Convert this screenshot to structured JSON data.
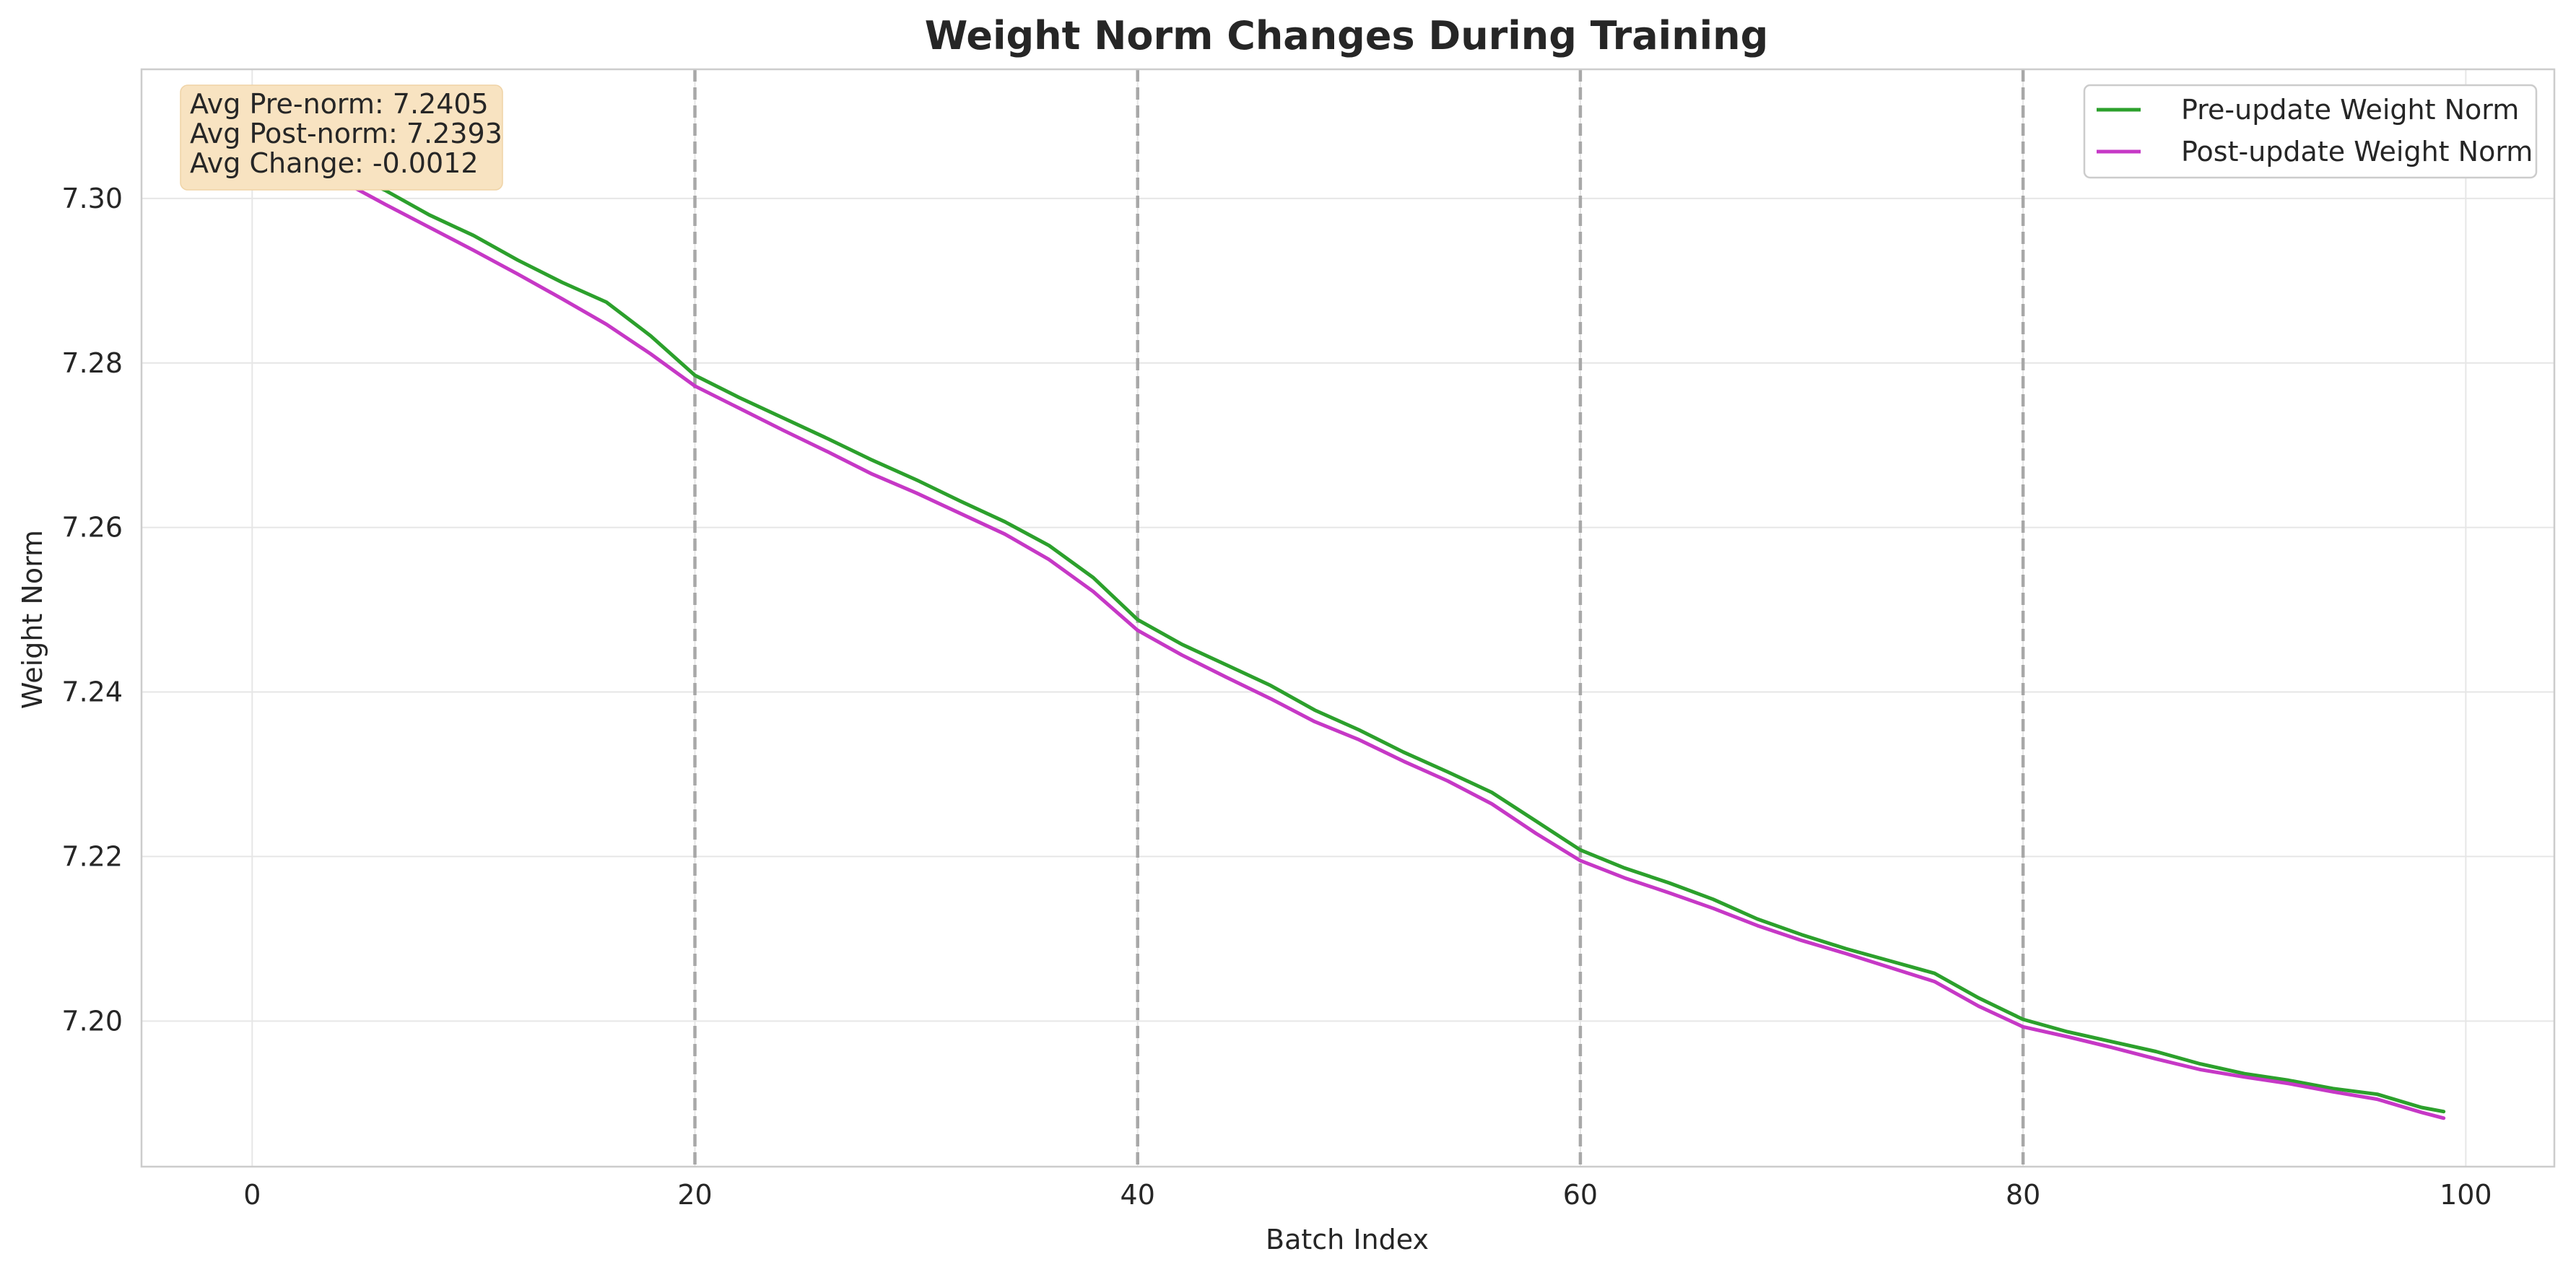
{
  "chart_data": {
    "type": "line",
    "title": "Weight Norm Changes During Training",
    "xlabel": "Batch Index",
    "ylabel": "Weight Norm",
    "xlim": [
      -5,
      104
    ],
    "ylim": [
      7.1823,
      7.3157
    ],
    "x_ticks": [
      0,
      20,
      40,
      60,
      80,
      100
    ],
    "x_tick_labels": [
      "0",
      "20",
      "40",
      "60",
      "80",
      "100"
    ],
    "y_ticks": [
      7.2,
      7.22,
      7.24,
      7.26,
      7.28,
      7.3
    ],
    "y_tick_labels": [
      "7.20",
      "7.22",
      "7.24",
      "7.26",
      "7.28",
      "7.30"
    ],
    "grid": true,
    "legend_position": "upper right",
    "vertical_markers": [
      20,
      40,
      60,
      80
    ],
    "annotation": [
      "Avg Pre-norm: 7.2405",
      "Avg Post-norm: 7.2393",
      "Avg Change: -0.0012"
    ],
    "series": [
      {
        "name": "Pre-update Weight Norm",
        "color": "#2ca02c",
        "x": [
          0,
          2,
          4,
          6,
          8,
          10,
          12,
          14,
          16,
          18,
          20,
          22,
          24,
          26,
          28,
          30,
          32,
          34,
          36,
          38,
          40,
          42,
          44,
          46,
          48,
          50,
          52,
          54,
          56,
          58,
          60,
          62,
          64,
          66,
          68,
          70,
          72,
          74,
          76,
          78,
          80,
          82,
          84,
          86,
          88,
          90,
          92,
          94,
          96,
          98,
          99
        ],
        "values": [
          7.3095,
          7.306,
          7.3035,
          7.301,
          7.298,
          7.2955,
          7.2925,
          7.2898,
          7.2874,
          7.2833,
          7.2785,
          7.2758,
          7.2733,
          7.2708,
          7.2682,
          7.2658,
          7.2632,
          7.2607,
          7.2578,
          7.2539,
          7.2488,
          7.2458,
          7.2433,
          7.2408,
          7.2378,
          7.2354,
          7.2327,
          7.2303,
          7.2278,
          7.2243,
          7.2208,
          7.2186,
          7.2168,
          7.2148,
          7.2124,
          7.2105,
          7.2088,
          7.2073,
          7.2058,
          7.2028,
          7.2002,
          7.1987,
          7.1975,
          7.1963,
          7.1948,
          7.1936,
          7.1928,
          7.1918,
          7.1911,
          7.1895,
          7.189
        ]
      },
      {
        "name": "Post-update Weight Norm",
        "color": "#c638c6",
        "x": [
          0,
          2,
          4,
          6,
          8,
          10,
          12,
          14,
          16,
          18,
          20,
          22,
          24,
          26,
          28,
          30,
          32,
          34,
          36,
          38,
          40,
          42,
          44,
          46,
          48,
          50,
          52,
          54,
          56,
          58,
          60,
          62,
          64,
          66,
          68,
          70,
          72,
          74,
          76,
          78,
          80,
          82,
          84,
          86,
          88,
          90,
          92,
          94,
          96,
          98,
          99
        ],
        "values": [
          7.3085,
          7.3048,
          7.3022,
          7.2993,
          7.2965,
          7.2937,
          7.2908,
          7.2878,
          7.2847,
          7.2811,
          7.2772,
          7.2745,
          7.2718,
          7.2692,
          7.2665,
          7.2642,
          7.2617,
          7.2592,
          7.2561,
          7.2522,
          7.2475,
          7.2445,
          7.2418,
          7.2392,
          7.2364,
          7.2342,
          7.2316,
          7.2292,
          7.2264,
          7.2228,
          7.2195,
          7.2174,
          7.2156,
          7.2137,
          7.2116,
          7.2098,
          7.2082,
          7.2065,
          7.2048,
          7.2018,
          7.1993,
          7.1981,
          7.1968,
          7.1954,
          7.1941,
          7.1932,
          7.1924,
          7.1914,
          7.1905,
          7.1889,
          7.1882
        ]
      }
    ]
  }
}
